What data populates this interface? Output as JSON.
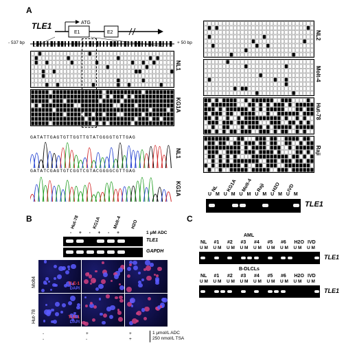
{
  "panel_a": {
    "letter": "A",
    "gene": "TLE1",
    "atg": "ATG",
    "exon1": "E1",
    "exon2": "E2",
    "left_pos": "- 537 bp",
    "right_pos": "+ 50 bp",
    "left_samples": [
      "NL1",
      "KG1A"
    ],
    "right_samples": [
      "NL2",
      "Molt-4",
      "Hut-78",
      "Raji"
    ],
    "seq_top": "GATATTGAGTGTTGGTTGTATGGGGTGTTGAG",
    "seq_bottom": "GATATCGAGTGTCGGTCGTACGGGGCGTTGAG",
    "seq_labels": [
      "NL1",
      "KG1A"
    ],
    "gel_lanes": [
      "NL",
      "KG1A",
      "Molt-4",
      "Raji",
      "H2O",
      "IVD"
    ],
    "um": "U M",
    "gel_gene": "TLE1"
  },
  "panel_b": {
    "letter": "B",
    "lanes": [
      "Hut-78",
      "KG1A",
      "Molt-4",
      "H2O"
    ],
    "treat_signs": [
      "-",
      "+",
      "-",
      "+",
      "-",
      "+"
    ],
    "treat_label": "1 μM ADC",
    "gel_rows": [
      "TLE1",
      "GAPDH"
    ],
    "row_labels": [
      "Molt4",
      "Hut-78"
    ],
    "stain_label_1": "TLE-1",
    "stain_label_2": "DAPI",
    "bottom_signs_row1": [
      "-",
      "+",
      "+"
    ],
    "bottom_signs_row2": [
      "-",
      "-",
      "+"
    ],
    "bottom_label_1": "1 μmol/L ADC",
    "bottom_label_2": "250 nmol/L TSA"
  },
  "panel_c": {
    "letter": "C",
    "group1": "AML",
    "group2": "B-DLCLs",
    "lanes": [
      "NL",
      "#1",
      "#2",
      "#3",
      "#4",
      "#5",
      "#6",
      "H2O",
      "IVD"
    ],
    "um": "U M",
    "gene": "TLE1"
  }
}
